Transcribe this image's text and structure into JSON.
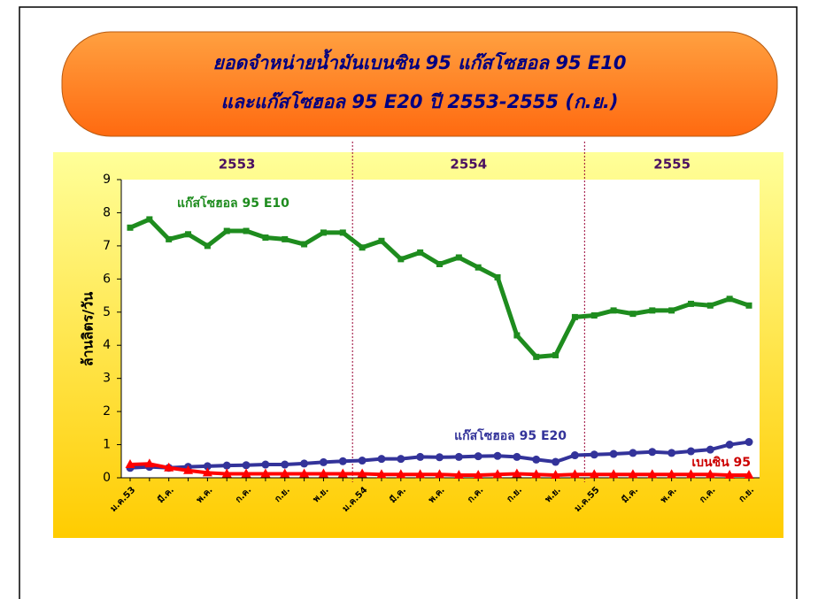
{
  "chart_data": {
    "type": "line",
    "title_lines": [
      "ยอดจำหน่ายน้ำมันเบนซิน 95 แก๊สโซฮอล 95 E10",
      "และแก๊สโซฮอล 95 E20  ปี 2553-2555 (ก.ย.)"
    ],
    "y_label": "ล้านลิตร/วัน",
    "x_groups": [
      "2553",
      "2554",
      "2555"
    ],
    "categories": [
      "ม.ค.53",
      null,
      "มี.ค.",
      null,
      "พ.ค.",
      null,
      "ก.ค.",
      null,
      "ก.ย.",
      null,
      "พ.ย.",
      null,
      "ม.ค.54",
      null,
      "มี.ค.",
      null,
      "พ.ค.",
      null,
      "ก.ค.",
      null,
      "ก.ย.",
      null,
      "พ.ย.",
      null,
      "ม.ค.55",
      null,
      "มี.ค.",
      null,
      "พ.ค.",
      null,
      "ก.ค.",
      null,
      "ก.ย."
    ],
    "series": [
      {
        "name": "แก๊สโซฮอล 95 E10",
        "color": "#1e8c1e",
        "marker": "square",
        "values": [
          7.55,
          7.8,
          7.2,
          7.35,
          7.0,
          7.45,
          7.45,
          7.25,
          7.2,
          7.05,
          7.4,
          7.4,
          6.95,
          7.15,
          6.6,
          6.8,
          6.45,
          6.65,
          6.35,
          6.05,
          4.3,
          3.65,
          3.7,
          4.85,
          4.9,
          5.05,
          4.95,
          5.05,
          5.05,
          5.25,
          5.2,
          5.4,
          5.2
        ]
      },
      {
        "name": "แก๊สโซฮอล 95 E20",
        "color": "#33339a",
        "marker": "circle",
        "values": [
          0.3,
          0.33,
          0.3,
          0.33,
          0.35,
          0.37,
          0.38,
          0.4,
          0.4,
          0.43,
          0.47,
          0.5,
          0.52,
          0.57,
          0.57,
          0.63,
          0.62,
          0.63,
          0.65,
          0.66,
          0.63,
          0.55,
          0.48,
          0.68,
          0.7,
          0.72,
          0.75,
          0.78,
          0.75,
          0.8,
          0.85,
          1.0,
          1.08
        ]
      },
      {
        "name": "เบนซิน 95",
        "color": "#ff0000",
        "marker": "triangle",
        "values": [
          0.4,
          0.42,
          0.3,
          0.22,
          0.15,
          0.12,
          0.12,
          0.12,
          0.12,
          0.12,
          0.12,
          0.12,
          0.12,
          0.1,
          0.1,
          0.1,
          0.1,
          0.08,
          0.08,
          0.1,
          0.12,
          0.1,
          0.08,
          0.1,
          0.1,
          0.1,
          0.1,
          0.1,
          0.1,
          0.1,
          0.1,
          0.08,
          0.08
        ]
      }
    ],
    "ylim": [
      0,
      9
    ],
    "yticks": [
      0,
      1,
      2,
      3,
      4,
      5,
      6,
      7,
      8,
      9
    ]
  }
}
